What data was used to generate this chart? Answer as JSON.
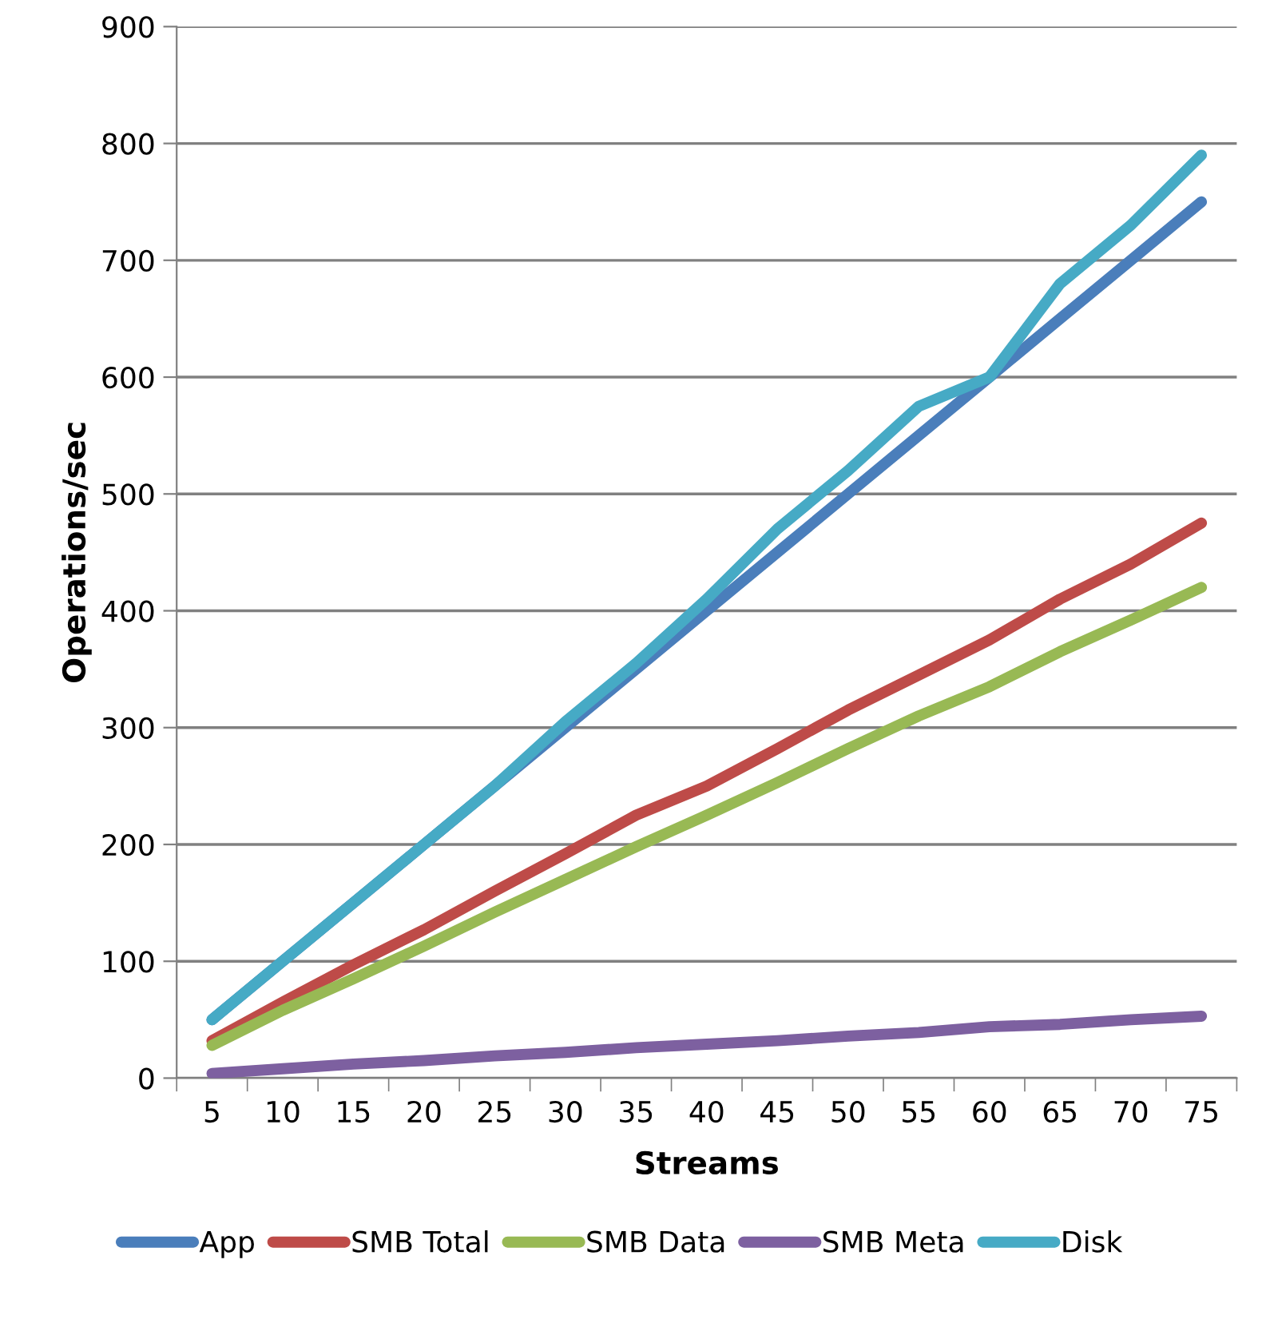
{
  "chart_data": {
    "type": "line",
    "xlabel": "Streams",
    "ylabel": "Operations/sec",
    "categories": [
      "5",
      "10",
      "15",
      "20",
      "25",
      "30",
      "35",
      "40",
      "45",
      "50",
      "55",
      "60",
      "65",
      "70",
      "75"
    ],
    "series": [
      {
        "name": "App",
        "color": "#4a7ebb",
        "values": [
          50,
          100,
          150,
          200,
          250,
          300,
          350,
          400,
          450,
          500,
          550,
          600,
          650,
          700,
          750
        ]
      },
      {
        "name": "SMB Total",
        "color": "#be4b48",
        "values": [
          32,
          65,
          97,
          127,
          160,
          192,
          225,
          250,
          282,
          315,
          345,
          375,
          410,
          440,
          475
        ]
      },
      {
        "name": "SMB Data",
        "color": "#98b954",
        "values": [
          28,
          58,
          85,
          113,
          142,
          170,
          198,
          225,
          253,
          282,
          310,
          335,
          365,
          392,
          420
        ]
      },
      {
        "name": "SMB Meta",
        "color": "#7d60a0",
        "values": [
          4,
          8,
          12,
          15,
          19,
          22,
          26,
          29,
          32,
          36,
          39,
          44,
          46,
          50,
          53
        ]
      },
      {
        "name": "Disk",
        "color": "#46aac5",
        "values": [
          50,
          100,
          150,
          200,
          250,
          305,
          355,
          410,
          470,
          520,
          575,
          600,
          680,
          730,
          790
        ]
      }
    ],
    "ylim": [
      0,
      900
    ],
    "yticks": [
      0,
      100,
      200,
      300,
      400,
      500,
      600,
      700,
      800,
      900
    ],
    "grid": "y",
    "legend": "bottom",
    "marker": "none",
    "line_style": "solid"
  }
}
